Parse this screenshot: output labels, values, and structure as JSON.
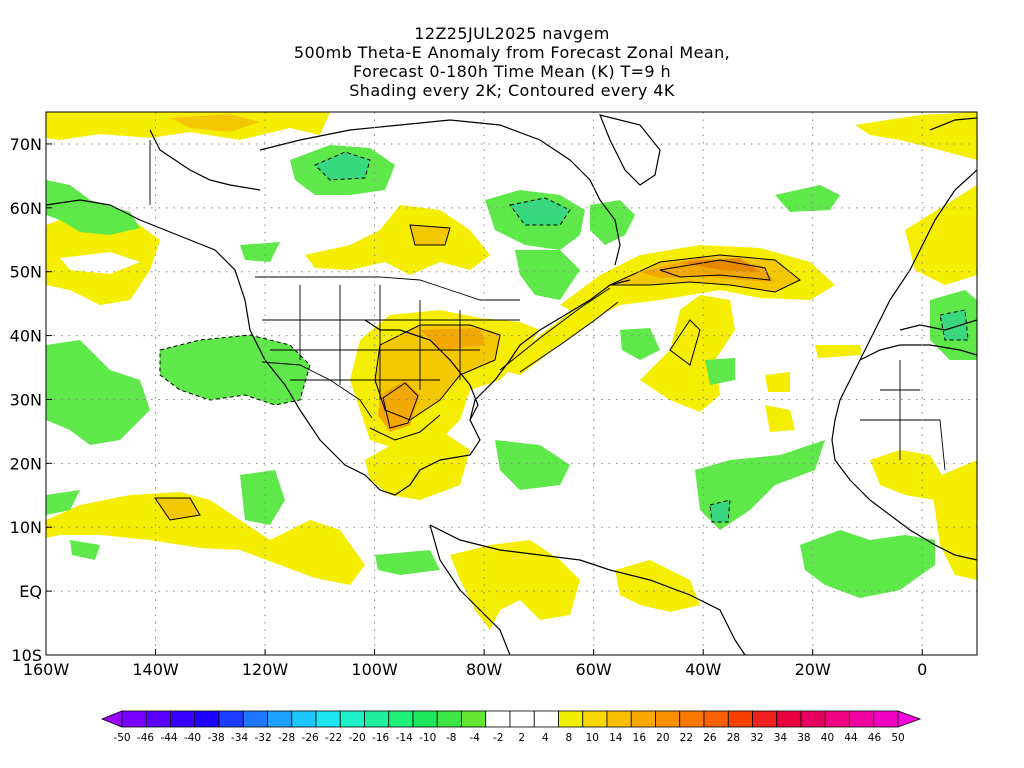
{
  "title": {
    "line1": "12Z25JUL2025 navgem",
    "line2": "500mb Theta-E Anomaly from Forecast Zonal Mean,",
    "line3": "Forecast 0-180h Time Mean (K) T=9 h",
    "line4": "Shading every 2K; Contoured every 4K"
  },
  "map": {
    "lon_range": [
      -160,
      10
    ],
    "lat_range": [
      -10,
      75
    ],
    "lat_ticks": [
      {
        "value": 70,
        "label": "70N"
      },
      {
        "value": 60,
        "label": "60N"
      },
      {
        "value": 50,
        "label": "50N"
      },
      {
        "value": 40,
        "label": "40N"
      },
      {
        "value": 30,
        "label": "30N"
      },
      {
        "value": 20,
        "label": "20N"
      },
      {
        "value": 10,
        "label": "10N"
      },
      {
        "value": 0,
        "label": "EQ"
      },
      {
        "value": -10,
        "label": "10S"
      }
    ],
    "lon_ticks": [
      {
        "value": -160,
        "label": "160W"
      },
      {
        "value": -140,
        "label": "140W"
      },
      {
        "value": -120,
        "label": "120W"
      },
      {
        "value": -100,
        "label": "100W"
      },
      {
        "value": -80,
        "label": "80W"
      },
      {
        "value": -60,
        "label": "60W"
      },
      {
        "value": -40,
        "label": "40W"
      },
      {
        "value": -20,
        "label": "20W"
      },
      {
        "value": 0,
        "label": "0"
      }
    ],
    "grid": true
  },
  "colorbar": {
    "labels": [
      "-50",
      "-46",
      "-44",
      "-40",
      "-38",
      "-34",
      "-32",
      "-28",
      "-26",
      "-22",
      "-20",
      "-16",
      "-14",
      "-10",
      "-8",
      "-4",
      "-2",
      "2",
      "4",
      "8",
      "10",
      "14",
      "16",
      "20",
      "22",
      "26",
      "28",
      "32",
      "34",
      "38",
      "40",
      "44",
      "46",
      "50"
    ],
    "colors": [
      "#9a00ff",
      "#7a00ff",
      "#5a00ff",
      "#3a00ff",
      "#1e00ff",
      "#1e3cff",
      "#1e78ff",
      "#1ea0ff",
      "#1ec8ff",
      "#1ee6f0",
      "#1ef0c8",
      "#1ef0a0",
      "#1ef078",
      "#1ee65a",
      "#3ce646",
      "#64e632",
      "#ffffff",
      "#ffffff",
      "#ffffff",
      "#f0f000",
      "#f8d800",
      "#f8c000",
      "#f8a800",
      "#f89000",
      "#f87800",
      "#f86000",
      "#f84000",
      "#f02020",
      "#e80040",
      "#e80060",
      "#f00080",
      "#f000a0",
      "#f000c0",
      "#ff00e0"
    ]
  },
  "fields": {
    "warm1": "#f6ee00",
    "warm2": "#f4c800",
    "warm3": "#f2a800",
    "warm4": "#e88800",
    "cool1": "#5ee84a",
    "cool2": "#38d880",
    "land": "#000000"
  }
}
